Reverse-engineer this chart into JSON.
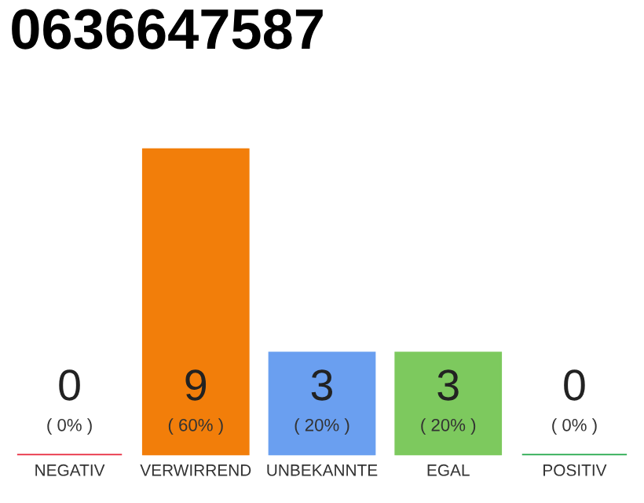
{
  "chart_data": {
    "type": "bar",
    "title": "0636647587",
    "categories": [
      "NEGATIV",
      "VERWIRREND",
      "UNBEKANNTE",
      "EGAL",
      "POSITIV"
    ],
    "values": [
      0,
      9,
      3,
      3,
      0
    ],
    "colors": [
      "#e8283c",
      "#f27e0a",
      "#6a9ff0",
      "#7dc95e",
      "#22a84a"
    ],
    "value_labels": [
      "0\n( 0% )",
      "9\n( 60% )",
      "3\n( 20% )",
      "3\n( 20% )",
      "0\n( 0% )"
    ]
  }
}
